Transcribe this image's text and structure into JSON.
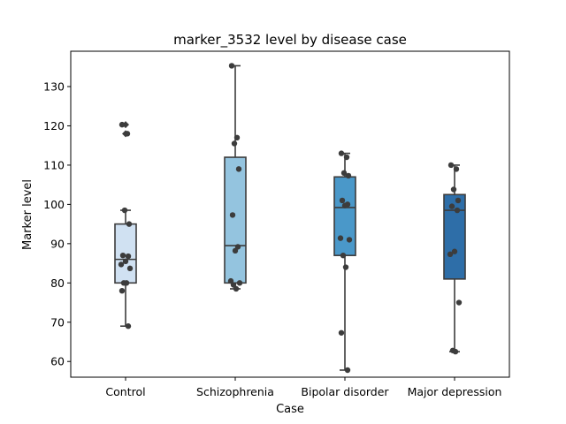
{
  "chart_data": {
    "type": "box",
    "title": "marker_3532 level by disease case",
    "xlabel": "Case",
    "ylabel": "Marker level",
    "ylim": [
      56,
      139
    ],
    "yticks": [
      60,
      70,
      80,
      90,
      100,
      110,
      120,
      130
    ],
    "categories": [
      "Control",
      "Schizophrenia",
      "Bipolar disorder",
      "Major depression"
    ],
    "box_colors": [
      "#d0e1f2",
      "#94c4df",
      "#4a98c9",
      "#2e6ea8"
    ],
    "edge_color": "#3c3c3c",
    "point_color": "#3c3c3c",
    "grid": false,
    "legend": "none",
    "boxes": [
      {
        "category": "Control",
        "whislo": 69,
        "q1": 80,
        "median": 86,
        "q3": 95,
        "whishi": 98.5
      },
      {
        "category": "Schizophrenia",
        "whislo": 78.5,
        "q1": 80,
        "median": 89.5,
        "q3": 112,
        "whishi": 135.3
      },
      {
        "category": "Bipolar disorder",
        "whislo": 57.8,
        "q1": 87,
        "median": 99.2,
        "q3": 107,
        "whishi": 113
      },
      {
        "category": "Major depression",
        "whislo": 62.5,
        "q1": 81,
        "median": 98.5,
        "q3": 102.5,
        "whishi": 110
      }
    ],
    "outliers": [
      {
        "category": "Control",
        "values": [
          120.3,
          118
        ]
      }
    ],
    "points": [
      {
        "category": "Control",
        "values": [
          120.3,
          118,
          98.5,
          95,
          87,
          86.8,
          85.5,
          84.7,
          83.7,
          80,
          80,
          78,
          69
        ]
      },
      {
        "category": "Schizophrenia",
        "values": [
          135.3,
          117,
          115.5,
          109,
          97.3,
          89.2,
          88.2,
          80.5,
          80,
          79.5,
          78.5
        ]
      },
      {
        "category": "Bipolar disorder",
        "values": [
          113,
          112,
          108,
          107.3,
          101,
          100,
          99.7,
          91.4,
          91,
          87,
          84,
          67.3,
          57.8
        ]
      },
      {
        "category": "Major depression",
        "values": [
          110,
          109,
          103.8,
          101,
          99.5,
          98.5,
          88,
          87.3,
          75,
          62.8,
          62.5
        ]
      }
    ]
  }
}
